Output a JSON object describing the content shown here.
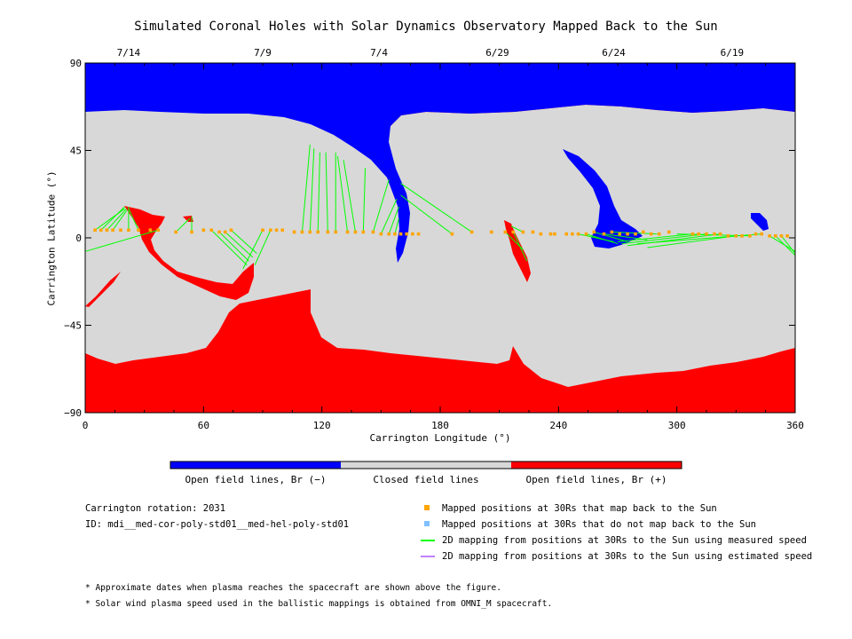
{
  "title": "Simulated Coronal Holes with Solar Dynamics Observatory Mapped Back to the Sun",
  "date_labels": [
    {
      "label": "7/14",
      "lon": 22
    },
    {
      "label": "7/9",
      "lon": 90
    },
    {
      "label": "7/4",
      "lon": 149
    },
    {
      "label": "6/29",
      "lon": 209
    },
    {
      "label": "6/24",
      "lon": 268
    },
    {
      "label": "6/19",
      "lon": 328
    }
  ],
  "chart_data": {
    "type": "map",
    "title": "Simulated Coronal Holes with Solar Dynamics Observatory Mapped Back to the Sun",
    "xlabel": "Carrington Longitude (°)",
    "ylabel": "Carrington Latitude (°)",
    "xlim": [
      0,
      360
    ],
    "ylim": [
      -90,
      90
    ],
    "xticks": [
      0,
      60,
      120,
      180,
      240,
      300,
      360
    ],
    "yticks": [
      90,
      45,
      0,
      -45,
      -90
    ],
    "ytick_labels": [
      "90",
      "45",
      "0",
      "−45",
      "−90"
    ],
    "regions": {
      "north_open": {
        "color": "#0000ff",
        "label": "Open field lines, Br (−)"
      },
      "closed": {
        "color": "#d8d8d8",
        "label": "Closed field lines"
      },
      "south_open": {
        "color": "#ff0000",
        "label": "Open field lines, Br (+)"
      }
    },
    "mapped_points": {
      "color": "#ffa500",
      "lon": [
        5,
        8,
        11,
        14,
        18,
        22,
        27,
        33,
        37,
        46,
        54,
        60,
        64,
        68,
        71,
        74,
        90,
        94,
        97,
        100,
        106,
        110,
        114,
        118,
        123,
        127,
        133,
        137,
        141,
        146,
        150,
        154,
        157,
        160,
        163,
        166,
        169,
        186,
        196,
        206,
        213,
        217,
        222,
        227,
        231,
        236,
        238,
        244,
        247,
        250,
        254,
        258,
        263,
        267,
        271,
        275,
        279,
        283,
        287,
        291,
        296,
        308,
        311,
        315,
        319,
        322,
        326,
        330,
        333,
        337,
        340,
        343,
        347,
        350,
        353,
        356
      ],
      "lat": [
        4,
        4,
        4,
        4,
        4,
        4,
        4,
        4,
        4,
        3,
        3,
        4,
        4,
        3,
        3,
        4,
        4,
        4,
        4,
        4,
        3,
        3,
        3,
        3,
        3,
        3,
        3,
        3,
        3,
        3,
        2,
        2,
        2,
        2,
        2,
        2,
        2,
        2,
        3,
        3,
        3,
        3,
        3,
        3,
        2,
        2,
        2,
        2,
        2,
        2,
        2,
        3,
        2,
        3,
        2,
        2,
        2,
        3,
        2,
        2,
        3,
        2,
        2,
        2,
        2,
        2,
        1,
        1,
        1,
        1,
        2,
        2,
        1,
        1,
        1,
        1
      ]
    },
    "mapping_lines": [
      {
        "from": [
          5,
          4
        ],
        "to": [
          20,
          15
        ]
      },
      {
        "from": [
          8,
          4
        ],
        "to": [
          20,
          16
        ]
      },
      {
        "from": [
          11,
          4
        ],
        "to": [
          21,
          15
        ]
      },
      {
        "from": [
          14,
          4
        ],
        "to": [
          21,
          14
        ]
      },
      {
        "from": [
          22,
          4
        ],
        "to": [
          22,
          16
        ]
      },
      {
        "from": [
          27,
          4
        ],
        "to": [
          22,
          15
        ]
      },
      {
        "from": [
          37,
          4
        ],
        "to": [
          0,
          -7
        ]
      },
      {
        "from": [
          46,
          3
        ],
        "to": [
          53,
          10
        ]
      },
      {
        "from": [
          54,
          3
        ],
        "to": [
          54,
          11
        ]
      },
      {
        "from": [
          64,
          4
        ],
        "to": [
          82,
          -14
        ]
      },
      {
        "from": [
          68,
          3
        ],
        "to": [
          83,
          -12
        ]
      },
      {
        "from": [
          71,
          3
        ],
        "to": [
          85,
          -10
        ]
      },
      {
        "from": [
          74,
          4
        ],
        "to": [
          87,
          -8
        ]
      },
      {
        "from": [
          90,
          4
        ],
        "to": [
          80,
          -16
        ]
      },
      {
        "from": [
          94,
          4
        ],
        "to": [
          86,
          -14
        ]
      },
      {
        "from": [
          110,
          3
        ],
        "to": [
          114,
          48
        ]
      },
      {
        "from": [
          114,
          3
        ],
        "to": [
          116,
          46
        ]
      },
      {
        "from": [
          118,
          3
        ],
        "to": [
          119,
          44
        ]
      },
      {
        "from": [
          123,
          3
        ],
        "to": [
          122,
          44
        ]
      },
      {
        "from": [
          127,
          3
        ],
        "to": [
          127,
          44
        ]
      },
      {
        "from": [
          133,
          3
        ],
        "to": [
          128,
          42
        ]
      },
      {
        "from": [
          137,
          3
        ],
        "to": [
          131,
          40
        ]
      },
      {
        "from": [
          141,
          3
        ],
        "to": [
          142,
          36
        ]
      },
      {
        "from": [
          146,
          3
        ],
        "to": [
          154,
          30
        ]
      },
      {
        "from": [
          150,
          2
        ],
        "to": [
          158,
          20
        ]
      },
      {
        "from": [
          154,
          2
        ],
        "to": [
          159,
          16
        ]
      },
      {
        "from": [
          157,
          2
        ],
        "to": [
          159,
          10
        ]
      },
      {
        "from": [
          186,
          2
        ],
        "to": [
          160,
          22
        ]
      },
      {
        "from": [
          196,
          3
        ],
        "to": [
          160,
          28
        ]
      },
      {
        "from": [
          213,
          3
        ],
        "to": [
          222,
          -6
        ]
      },
      {
        "from": [
          217,
          3
        ],
        "to": [
          224,
          -12
        ]
      },
      {
        "from": [
          222,
          3
        ],
        "to": [
          216,
          6
        ]
      },
      {
        "from": [
          250,
          2
        ],
        "to": [
          268,
          -2
        ]
      },
      {
        "from": [
          254,
          2
        ],
        "to": [
          270,
          -3
        ]
      },
      {
        "from": [
          258,
          3
        ],
        "to": [
          275,
          -2
        ]
      },
      {
        "from": [
          263,
          2
        ],
        "to": [
          285,
          -1
        ]
      },
      {
        "from": [
          267,
          3
        ],
        "to": [
          290,
          2
        ]
      },
      {
        "from": [
          308,
          2
        ],
        "to": [
          270,
          -2
        ]
      },
      {
        "from": [
          315,
          2
        ],
        "to": [
          272,
          -3
        ]
      },
      {
        "from": [
          322,
          2
        ],
        "to": [
          275,
          -4
        ]
      },
      {
        "from": [
          330,
          1
        ],
        "to": [
          285,
          -5
        ]
      },
      {
        "from": [
          337,
          1
        ],
        "to": [
          300,
          2
        ]
      },
      {
        "from": [
          343,
          2
        ],
        "to": [
          280,
          -3
        ]
      },
      {
        "from": [
          347,
          1
        ],
        "to": [
          360,
          -7
        ]
      },
      {
        "from": [
          350,
          1
        ],
        "to": [
          360,
          -9
        ]
      },
      {
        "from": [
          353,
          1
        ],
        "to": [
          360,
          -8
        ]
      }
    ]
  },
  "colorbar": [
    {
      "label": "Open field lines, Br (−)",
      "color": "#0000ff"
    },
    {
      "label": "Closed field lines",
      "color": "#d8d8d8"
    },
    {
      "label": "Open field lines, Br (+)",
      "color": "#ff0000"
    }
  ],
  "info": {
    "rotation": "Carrington rotation: 2031",
    "id": "ID: mdi__med-cor-poly-std01__med-hel-poly-std01"
  },
  "legend": [
    {
      "label": "Mapped positions at 30Rs that map back to the Sun",
      "color": "#ffa500",
      "marker": "square"
    },
    {
      "label": "Mapped positions at 30Rs that do not map back to the Sun",
      "color": "#80c0ff",
      "marker": "square"
    },
    {
      "label": "2D mapping from positions at 30Rs to the Sun using measured speed",
      "color": "#00ff00",
      "marker": "line"
    },
    {
      "label": "2D mapping from positions at 30Rs to the Sun using estimated speed",
      "color": "#c080ff",
      "marker": "line"
    }
  ],
  "notes": [
    "* Approximate dates when plasma reaches the spacecraft are shown above the figure.",
    "* Solar wind plasma speed used in the ballistic mappings is obtained from OMNI_M spacecraft."
  ]
}
